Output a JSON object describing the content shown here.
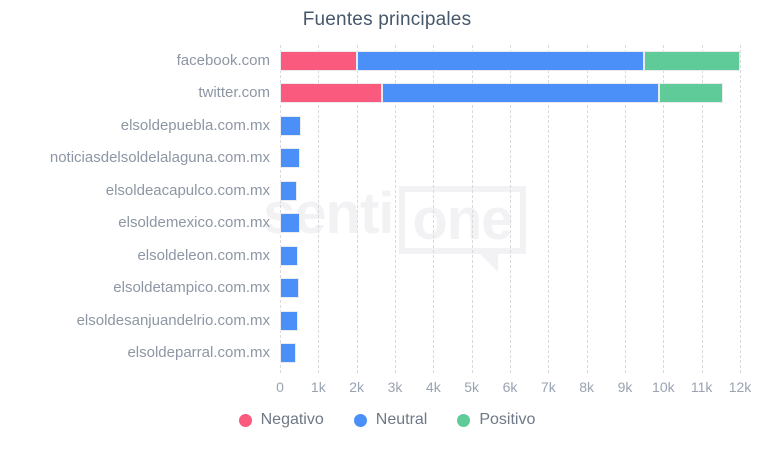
{
  "title": "Fuentes principales",
  "watermark": {
    "text_left": "senti",
    "text_right": "one"
  },
  "colors": {
    "negative": "#f95a7e",
    "neutral": "#4a90f8",
    "positive": "#5fcb98",
    "grid": "#d7d9dd",
    "title_text": "#47586b",
    "category_text": "#8d96a4",
    "tick_text": "#9aa3b1",
    "legend_text": "#6f7987"
  },
  "chart_data": {
    "type": "bar",
    "orientation": "horizontal",
    "stacked": true,
    "title": "Fuentes principales",
    "categories": [
      "facebook.com",
      "twitter.com",
      "elsoldepuebla.com.mx",
      "noticiasdelsoldelalaguna.com.mx",
      "elsoldeacapulco.com.mx",
      "elsoldemexico.com.mx",
      "elsoldeleon.com.mx",
      "elsoldetampico.com.mx",
      "elsoldesanjuandelrio.com.mx",
      "elsoldeparral.com.mx"
    ],
    "series": [
      {
        "name": "Negativo",
        "color": "#f95a7e",
        "values": [
          2000,
          2650,
          0,
          0,
          0,
          0,
          0,
          0,
          0,
          0
        ]
      },
      {
        "name": "Neutral",
        "color": "#4a90f8",
        "values": [
          7500,
          7250,
          550,
          520,
          450,
          520,
          470,
          490,
          480,
          420
        ]
      },
      {
        "name": "Positivo",
        "color": "#5fcb98",
        "values": [
          2500,
          1650,
          0,
          0,
          0,
          0,
          0,
          0,
          0,
          0
        ]
      }
    ],
    "xlim": [
      0,
      12000
    ],
    "tick_step": 1000,
    "x_ticks": [
      "0",
      "1k",
      "2k",
      "3k",
      "4k",
      "5k",
      "6k",
      "7k",
      "8k",
      "9k",
      "10k",
      "11k",
      "12k"
    ],
    "grid": "dashed-vertical",
    "legend_position": "bottom"
  },
  "legend": {
    "items": [
      {
        "label": "Negativo",
        "color": "#f95a7e"
      },
      {
        "label": "Neutral",
        "color": "#4a90f8"
      },
      {
        "label": "Positivo",
        "color": "#5fcb98"
      }
    ]
  }
}
